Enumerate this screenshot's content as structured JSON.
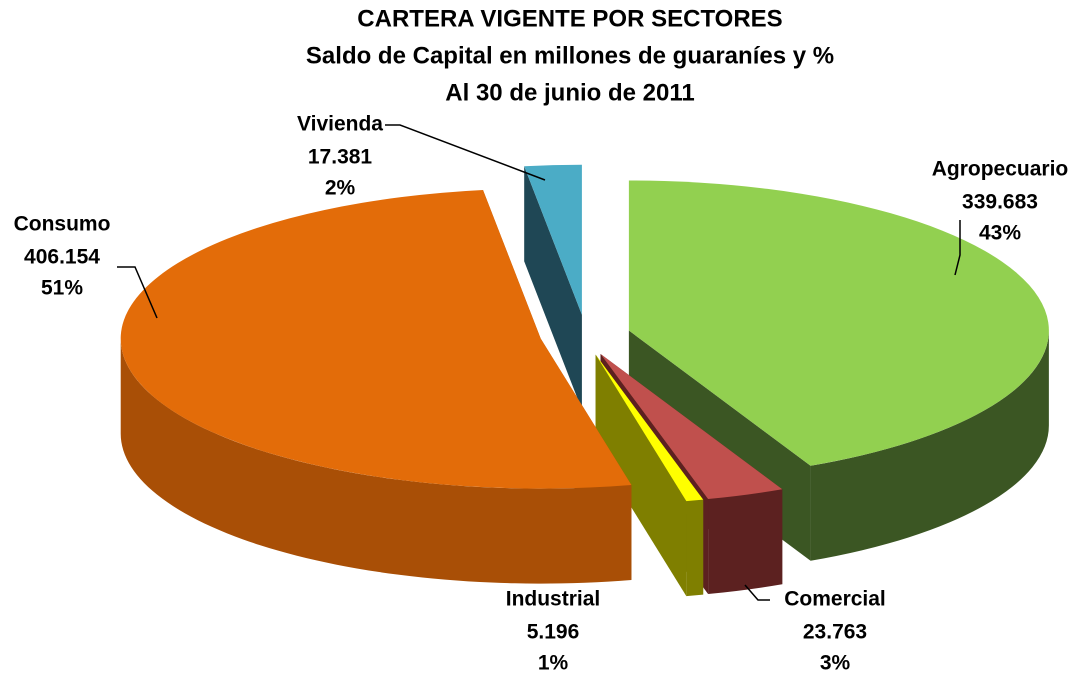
{
  "chart_data": {
    "type": "pie",
    "title": "CARTERA VIGENTE POR SECTORES",
    "subtitle": [
      "Saldo de Capital en millones de guaraníes y %",
      "Al 30 de junio de 2011"
    ],
    "categories": [
      "Agropecuario",
      "Comercial",
      "Industrial",
      "Consumo",
      "Vivienda"
    ],
    "values": [
      339683,
      23763,
      5196,
      406154,
      17381
    ],
    "value_labels": [
      "339.683",
      "23.763",
      "5.196",
      "406.154",
      "17.381"
    ],
    "percents": [
      43,
      3,
      1,
      51,
      2
    ],
    "percent_labels": [
      "43%",
      "3%",
      "1%",
      "51%",
      "2%"
    ],
    "colors": [
      "#92d050",
      "#c0504d",
      "#ffff00",
      "#e36c09",
      "#4bacc6"
    ],
    "side_colors": [
      "#3b5623",
      "#5c2120",
      "#7f7f00",
      "#a94f06",
      "#1f4755"
    ]
  }
}
